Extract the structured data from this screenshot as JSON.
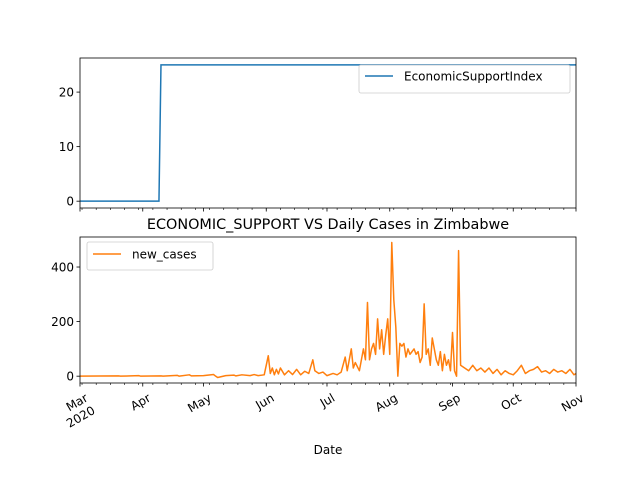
{
  "chart_data": [
    {
      "type": "line",
      "title": "",
      "xlabel": "",
      "ylabel": "",
      "x_range": [
        "2020-03-01",
        "2020-11-01"
      ],
      "ylim": [
        -1.25,
        26.25
      ],
      "yticks": [
        0,
        10,
        20
      ],
      "xticks_labeled": false,
      "grid": false,
      "legend": {
        "placement": "top-right",
        "entries": [
          "EconomicSupportIndex"
        ]
      },
      "series": [
        {
          "name": "EconomicSupportIndex",
          "color": "#1f77b4",
          "step": true,
          "points": [
            [
              "2020-03-01",
              0
            ],
            [
              "2020-04-09",
              0
            ],
            [
              "2020-04-10",
              25
            ],
            [
              "2020-11-01",
              25
            ]
          ]
        }
      ]
    },
    {
      "type": "line",
      "title": "ECONOMIC_SUPPORT VS Daily Cases in Zimbabwe",
      "xlabel": "Date",
      "ylabel": "",
      "x_range": [
        "2020-03-01",
        "2020-11-01"
      ],
      "ylim": [
        -25,
        510
      ],
      "yticks": [
        0,
        200,
        400
      ],
      "xtick_labels": [
        {
          "date": "2020-03-01",
          "label": "Mar",
          "sublabel": "2020"
        },
        {
          "date": "2020-04-01",
          "label": "Apr",
          "sublabel": ""
        },
        {
          "date": "2020-05-01",
          "label": "May",
          "sublabel": ""
        },
        {
          "date": "2020-06-01",
          "label": "Jun",
          "sublabel": ""
        },
        {
          "date": "2020-07-01",
          "label": "Jul",
          "sublabel": ""
        },
        {
          "date": "2020-08-01",
          "label": "Aug",
          "sublabel": ""
        },
        {
          "date": "2020-09-01",
          "label": "Sep",
          "sublabel": ""
        },
        {
          "date": "2020-10-01",
          "label": "Oct",
          "sublabel": ""
        },
        {
          "date": "2020-11-01",
          "label": "Nov",
          "sublabel": ""
        }
      ],
      "grid": false,
      "legend": {
        "placement": "top-left",
        "entries": [
          "new_cases"
        ]
      },
      "series": [
        {
          "name": "new_cases",
          "color": "#ff7f0e",
          "points": [
            [
              "2020-03-01",
              0
            ],
            [
              "2020-03-20",
              1
            ],
            [
              "2020-03-21",
              0
            ],
            [
              "2020-03-30",
              2
            ],
            [
              "2020-03-31",
              0
            ],
            [
              "2020-04-10",
              1
            ],
            [
              "2020-04-11",
              0
            ],
            [
              "2020-04-18",
              3
            ],
            [
              "2020-04-19",
              0
            ],
            [
              "2020-04-24",
              5
            ],
            [
              "2020-04-25",
              1
            ],
            [
              "2020-05-01",
              2
            ],
            [
              "2020-05-06",
              6
            ],
            [
              "2020-05-07",
              0
            ],
            [
              "2020-05-08",
              -5
            ],
            [
              "2020-05-12",
              2
            ],
            [
              "2020-05-16",
              4
            ],
            [
              "2020-05-17",
              1
            ],
            [
              "2020-05-20",
              5
            ],
            [
              "2020-05-24",
              2
            ],
            [
              "2020-05-26",
              6
            ],
            [
              "2020-05-28",
              2
            ],
            [
              "2020-05-31",
              5
            ],
            [
              "2020-06-02",
              75
            ],
            [
              "2020-06-03",
              10
            ],
            [
              "2020-06-04",
              30
            ],
            [
              "2020-06-05",
              5
            ],
            [
              "2020-06-06",
              25
            ],
            [
              "2020-06-07",
              8
            ],
            [
              "2020-06-08",
              30
            ],
            [
              "2020-06-10",
              5
            ],
            [
              "2020-06-12",
              20
            ],
            [
              "2020-06-14",
              6
            ],
            [
              "2020-06-16",
              25
            ],
            [
              "2020-06-18",
              5
            ],
            [
              "2020-06-20",
              18
            ],
            [
              "2020-06-22",
              10
            ],
            [
              "2020-06-24",
              60
            ],
            [
              "2020-06-25",
              20
            ],
            [
              "2020-06-27",
              10
            ],
            [
              "2020-06-29",
              15
            ],
            [
              "2020-07-01",
              2
            ],
            [
              "2020-07-04",
              10
            ],
            [
              "2020-07-06",
              5
            ],
            [
              "2020-07-08",
              15
            ],
            [
              "2020-07-10",
              70
            ],
            [
              "2020-07-11",
              20
            ],
            [
              "2020-07-13",
              100
            ],
            [
              "2020-07-14",
              30
            ],
            [
              "2020-07-15",
              50
            ],
            [
              "2020-07-17",
              20
            ],
            [
              "2020-07-19",
              100
            ],
            [
              "2020-07-20",
              60
            ],
            [
              "2020-07-21",
              270
            ],
            [
              "2020-07-22",
              60
            ],
            [
              "2020-07-23",
              100
            ],
            [
              "2020-07-24",
              120
            ],
            [
              "2020-07-25",
              80
            ],
            [
              "2020-07-26",
              210
            ],
            [
              "2020-07-27",
              100
            ],
            [
              "2020-07-28",
              170
            ],
            [
              "2020-07-29",
              80
            ],
            [
              "2020-07-30",
              150
            ],
            [
              "2020-07-31",
              210
            ],
            [
              "2020-08-01",
              80
            ],
            [
              "2020-08-02",
              490
            ],
            [
              "2020-08-03",
              280
            ],
            [
              "2020-08-04",
              180
            ],
            [
              "2020-08-05",
              0
            ],
            [
              "2020-08-06",
              120
            ],
            [
              "2020-08-07",
              110
            ],
            [
              "2020-08-08",
              120
            ],
            [
              "2020-08-09",
              70
            ],
            [
              "2020-08-10",
              100
            ],
            [
              "2020-08-11",
              80
            ],
            [
              "2020-08-12",
              90
            ],
            [
              "2020-08-13",
              100
            ],
            [
              "2020-08-14",
              80
            ],
            [
              "2020-08-15",
              90
            ],
            [
              "2020-08-16",
              50
            ],
            [
              "2020-08-17",
              70
            ],
            [
              "2020-08-18",
              265
            ],
            [
              "2020-08-19",
              80
            ],
            [
              "2020-08-20",
              100
            ],
            [
              "2020-08-21",
              40
            ],
            [
              "2020-08-22",
              140
            ],
            [
              "2020-08-23",
              100
            ],
            [
              "2020-08-24",
              60
            ],
            [
              "2020-08-25",
              40
            ],
            [
              "2020-08-26",
              90
            ],
            [
              "2020-08-27",
              20
            ],
            [
              "2020-08-28",
              80
            ],
            [
              "2020-08-29",
              40
            ],
            [
              "2020-08-30",
              60
            ],
            [
              "2020-08-31",
              20
            ],
            [
              "2020-09-01",
              160
            ],
            [
              "2020-09-02",
              20
            ],
            [
              "2020-09-03",
              0
            ],
            [
              "2020-09-04",
              460
            ],
            [
              "2020-09-05",
              40
            ],
            [
              "2020-09-07",
              30
            ],
            [
              "2020-09-09",
              20
            ],
            [
              "2020-09-11",
              40
            ],
            [
              "2020-09-13",
              20
            ],
            [
              "2020-09-15",
              30
            ],
            [
              "2020-09-17",
              15
            ],
            [
              "2020-09-19",
              30
            ],
            [
              "2020-09-21",
              10
            ],
            [
              "2020-09-23",
              25
            ],
            [
              "2020-09-25",
              5
            ],
            [
              "2020-09-27",
              20
            ],
            [
              "2020-09-29",
              10
            ],
            [
              "2020-10-01",
              5
            ],
            [
              "2020-10-03",
              20
            ],
            [
              "2020-10-05",
              40
            ],
            [
              "2020-10-07",
              10
            ],
            [
              "2020-10-09",
              20
            ],
            [
              "2020-10-11",
              25
            ],
            [
              "2020-10-13",
              35
            ],
            [
              "2020-10-15",
              15
            ],
            [
              "2020-10-17",
              20
            ],
            [
              "2020-10-19",
              10
            ],
            [
              "2020-10-21",
              25
            ],
            [
              "2020-10-23",
              15
            ],
            [
              "2020-10-25",
              20
            ],
            [
              "2020-10-27",
              10
            ],
            [
              "2020-10-29",
              25
            ],
            [
              "2020-10-31",
              5
            ],
            [
              "2020-11-01",
              10
            ]
          ]
        }
      ]
    }
  ]
}
